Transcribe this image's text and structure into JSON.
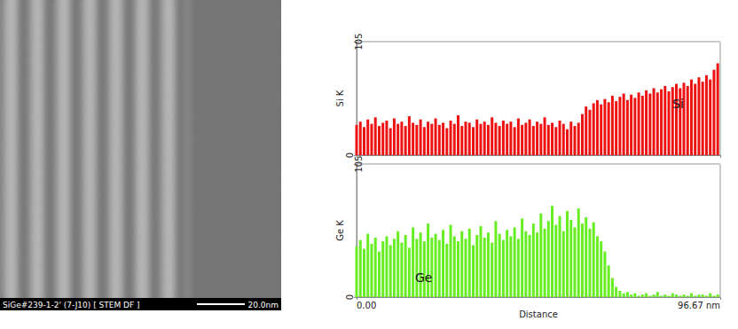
{
  "micrograph": {
    "caption": "SiGe#239-1-2' (7-J10) [ STEM DF ]",
    "scale_bar": "20.0nm"
  },
  "chart_data": [
    {
      "type": "bar",
      "ylabel": "Si K",
      "x": [
        0,
        1,
        2,
        3,
        4,
        5,
        6,
        7,
        8,
        9,
        10,
        11,
        12,
        13,
        14,
        15,
        16,
        17,
        18,
        19,
        20,
        21,
        22,
        23,
        24,
        25,
        26,
        27,
        28,
        29,
        30,
        31,
        32,
        33,
        34,
        35,
        36,
        37,
        38,
        39,
        40,
        41,
        42,
        43,
        44,
        45,
        46,
        47,
        48,
        49,
        50,
        51,
        52,
        53,
        54,
        55,
        56,
        57,
        58,
        59,
        60,
        61,
        62,
        63,
        64,
        65,
        66,
        67,
        68,
        69,
        70,
        71,
        72,
        73,
        74,
        75,
        76,
        77,
        78,
        79,
        80,
        81,
        82,
        83,
        84,
        85,
        86,
        87,
        88,
        89,
        90,
        91,
        92,
        93,
        94,
        95,
        96
      ],
      "series": [
        {
          "name": "Si",
          "color": "#ee1111",
          "values": [
            28,
            31,
            26,
            33,
            29,
            35,
            27,
            30,
            32,
            25,
            34,
            29,
            31,
            27,
            36,
            30,
            28,
            33,
            26,
            31,
            29,
            34,
            28,
            30,
            25,
            32,
            29,
            37,
            27,
            31,
            30,
            26,
            33,
            29,
            31,
            28,
            35,
            30,
            27,
            32,
            29,
            31,
            26,
            34,
            28,
            30,
            33,
            27,
            31,
            29,
            35,
            28,
            30,
            26,
            32,
            29,
            24,
            31,
            27,
            30,
            38,
            45,
            42,
            48,
            51,
            47,
            52,
            49,
            55,
            50,
            54,
            57,
            51,
            56,
            53,
            58,
            55,
            60,
            57,
            62,
            58,
            61,
            64,
            59,
            63,
            66,
            62,
            67,
            64,
            70,
            66,
            72,
            68,
            74,
            70,
            79,
            85
          ]
        }
      ],
      "xlim": [
        0,
        96.67
      ],
      "xticks": [
        0,
        96.67
      ],
      "ylim": [
        0,
        105
      ],
      "yticks": [
        0,
        105
      ],
      "grid": true,
      "tick_labels": "y"
    },
    {
      "type": "bar",
      "ylabel": "Ge K",
      "xlabel": "Distance",
      "x": [
        0,
        1,
        2,
        3,
        4,
        5,
        6,
        7,
        8,
        9,
        10,
        11,
        12,
        13,
        14,
        15,
        16,
        17,
        18,
        19,
        20,
        21,
        22,
        23,
        24,
        25,
        26,
        27,
        28,
        29,
        30,
        31,
        32,
        33,
        34,
        35,
        36,
        37,
        38,
        39,
        40,
        41,
        42,
        43,
        44,
        45,
        46,
        47,
        48,
        49,
        50,
        51,
        52,
        53,
        54,
        55,
        56,
        57,
        58,
        59,
        60,
        61,
        62,
        63,
        64,
        65,
        66,
        67,
        68,
        69,
        70,
        71,
        72,
        73,
        74,
        75,
        76,
        77,
        78,
        79,
        80,
        81,
        82,
        83,
        84,
        85,
        86,
        87,
        88,
        89,
        90,
        91,
        92,
        93,
        94,
        95,
        96
      ],
      "series": [
        {
          "name": "Ge",
          "color": "#66ee22",
          "values": [
            40,
            45,
            38,
            50,
            42,
            47,
            36,
            44,
            48,
            41,
            46,
            52,
            43,
            49,
            39,
            55,
            46,
            51,
            44,
            58,
            47,
            50,
            45,
            53,
            42,
            57,
            48,
            44,
            52,
            46,
            54,
            41,
            49,
            56,
            47,
            51,
            43,
            60,
            50,
            45,
            53,
            48,
            55,
            46,
            62,
            52,
            49,
            58,
            51,
            66,
            54,
            60,
            72,
            57,
            64,
            52,
            68,
            61,
            55,
            70,
            58,
            63,
            54,
            59,
            48,
            44,
            36,
            25,
            15,
            8,
            5,
            3,
            4,
            2,
            3,
            1,
            2,
            3,
            1,
            2,
            4,
            1,
            2,
            1,
            3,
            2,
            1,
            2,
            1,
            3,
            1,
            2,
            2,
            1,
            3,
            1,
            2
          ]
        }
      ],
      "xlim": [
        0,
        96.67
      ],
      "xticks": [
        {
          "value": 0,
          "label": "0.00"
        },
        {
          "value": 96.67,
          "label": "96.67 nm"
        }
      ],
      "ylim": [
        0,
        105
      ],
      "yticks": [
        0,
        105
      ],
      "grid": true
    }
  ]
}
